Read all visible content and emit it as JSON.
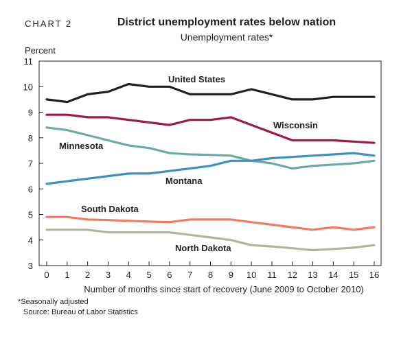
{
  "header": {
    "chart_number": "CHART 2",
    "title": "District unemployment rates below nation",
    "subtitle": "Unemployment rates*"
  },
  "footer": {
    "footnote": "*Seasonally adjusted",
    "source": "Source: Bureau of Labor Statistics"
  },
  "chart_data": {
    "type": "line",
    "title": "District unemployment rates below nation",
    "subtitle": "Unemployment rates*",
    "xlabel": "Number of months since start of recovery (June 2009 to October 2010)",
    "ylabel": "Percent",
    "x": [
      0,
      1,
      2,
      3,
      4,
      5,
      6,
      7,
      8,
      9,
      10,
      11,
      12,
      13,
      14,
      15,
      16
    ],
    "xlim": [
      0,
      16
    ],
    "ylim": [
      3,
      11
    ],
    "yticks": [
      3,
      4,
      5,
      6,
      7,
      8,
      9,
      10,
      11
    ],
    "grid": false,
    "legend": "inline labels",
    "series": [
      {
        "name": "United States",
        "color": "#231f20",
        "values": [
          9.5,
          9.4,
          9.7,
          9.8,
          10.1,
          10.0,
          10.0,
          9.7,
          9.7,
          9.7,
          9.9,
          9.7,
          9.5,
          9.5,
          9.6,
          9.6,
          9.6
        ]
      },
      {
        "name": "Wisconsin",
        "color": "#9c1b45",
        "values": [
          8.9,
          8.9,
          8.8,
          8.8,
          8.7,
          8.6,
          8.5,
          8.7,
          8.7,
          8.8,
          8.5,
          8.2,
          7.9,
          7.9,
          7.9,
          7.85,
          7.8
        ]
      },
      {
        "name": "Minnesota",
        "color": "#6aaaa5",
        "values": [
          8.4,
          8.3,
          8.1,
          7.9,
          7.7,
          7.6,
          7.4,
          7.35,
          7.33,
          7.3,
          7.1,
          7.0,
          6.8,
          6.9,
          6.95,
          7.0,
          7.1
        ]
      },
      {
        "name": "Montana",
        "color": "#3f8fc4",
        "values": [
          6.2,
          6.3,
          6.4,
          6.5,
          6.6,
          6.6,
          6.7,
          6.8,
          6.9,
          7.1,
          7.1,
          7.2,
          7.25,
          7.3,
          7.35,
          7.4,
          7.3
        ]
      },
      {
        "name": "South Dakota",
        "color": "#f37a60",
        "values": [
          4.9,
          4.9,
          4.8,
          4.78,
          4.75,
          4.72,
          4.7,
          4.8,
          4.8,
          4.8,
          4.7,
          4.6,
          4.5,
          4.4,
          4.5,
          4.4,
          4.5
        ]
      },
      {
        "name": "North Dakota",
        "color": "#aeb69c",
        "values": [
          4.4,
          4.4,
          4.4,
          4.3,
          4.3,
          4.3,
          4.3,
          4.2,
          4.1,
          4.0,
          3.8,
          3.75,
          3.68,
          3.6,
          3.65,
          3.7,
          3.8
        ]
      }
    ]
  }
}
